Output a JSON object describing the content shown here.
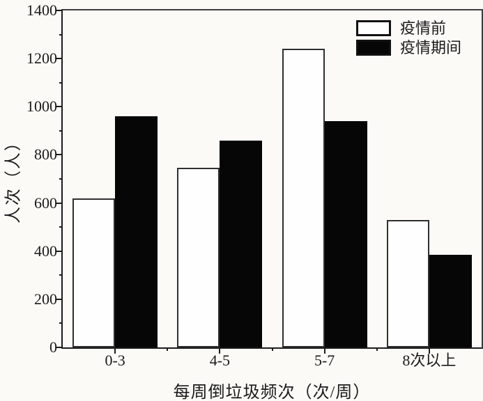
{
  "chart_data": {
    "type": "bar",
    "title": "",
    "categories": [
      "0-3",
      "4-5",
      "5-7",
      "8次以上"
    ],
    "series": [
      {
        "name": "疫情前",
        "fill": "#ffffff",
        "values": [
          620,
          745,
          1240,
          530
        ]
      },
      {
        "name": "疫情期间",
        "fill": "#060606",
        "values": [
          960,
          860,
          940,
          385
        ]
      }
    ],
    "xlabel": "每周倒垃圾频次（次/周）",
    "ylabel": "人次（人）",
    "ylim": [
      0,
      1400
    ],
    "y_major_step": 200,
    "y_minor_step": 100,
    "y_tick_labels": [
      "0",
      "200",
      "400",
      "600",
      "800",
      "1000",
      "1200",
      "1400"
    ],
    "grid": false,
    "legend_position": "top-right",
    "colors": {
      "bar_outline": "#2f2f2f",
      "bar_filled": "#060606",
      "axis": "#1c1c1c",
      "background": "#fbfaf6"
    }
  }
}
